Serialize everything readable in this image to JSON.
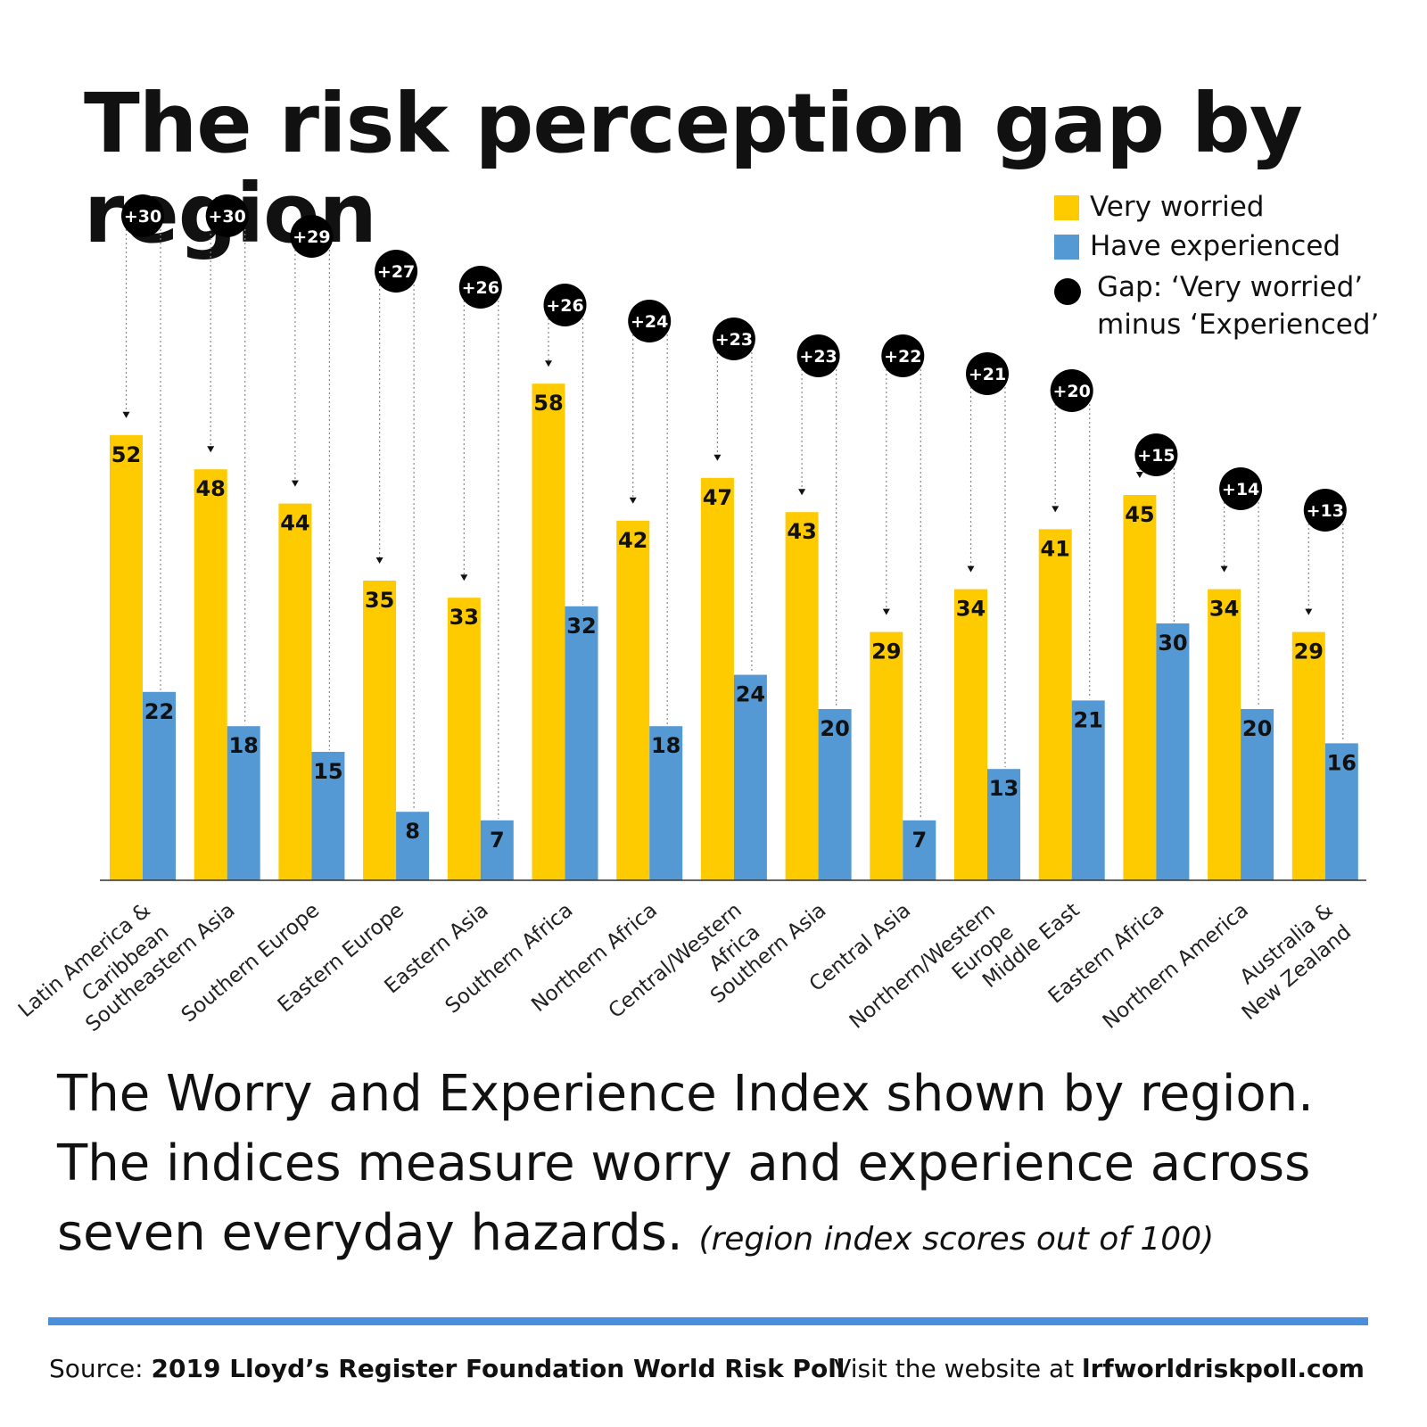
{
  "title": "The risk perception gap by region",
  "legend": {
    "very_worried": "Very worried",
    "have_experienced": "Have experienced",
    "gap_line1": "Gap: ‘Very worried’",
    "gap_line2": "minus ‘Experienced’"
  },
  "colors": {
    "worried": "#FECB00",
    "experienced": "#5499D4",
    "gap": "#000000"
  },
  "caption": {
    "line1": "The Worry and Experience Index shown by region.",
    "line2": "The indices measure worry and experience across",
    "line3": "seven everyday hazards.",
    "note": "(region index scores out of 100)"
  },
  "footer": {
    "source_label": "Source:",
    "source_name": "2019 Lloyd’s Register Foundation World Risk Poll",
    "visit_label": "Visit the website at",
    "website": "lrfworldriskpoll.com"
  },
  "chart_data": {
    "type": "bar",
    "title": "The risk perception gap by region",
    "ylim": [
      0,
      100
    ],
    "grid": false,
    "legend_position": "top-right",
    "categories": [
      [
        "Latin America &",
        "Caribbean"
      ],
      [
        "Southeastern Asia"
      ],
      [
        "Southern Europe"
      ],
      [
        "Eastern Europe"
      ],
      [
        "Eastern Asia"
      ],
      [
        "Southern Africa"
      ],
      [
        "Northern Africa"
      ],
      [
        "Central/Western",
        "Africa"
      ],
      [
        "Southern Asia"
      ],
      [
        "Central Asia"
      ],
      [
        "Northern/Western",
        "Europe"
      ],
      [
        "Middle East"
      ],
      [
        "Eastern Africa"
      ],
      [
        "Northern America"
      ],
      [
        "Australia &",
        "New Zealand"
      ]
    ],
    "series": [
      {
        "name": "Very worried",
        "values": [
          52,
          48,
          44,
          35,
          33,
          58,
          42,
          47,
          43,
          29,
          34,
          41,
          45,
          34,
          29
        ]
      },
      {
        "name": "Have experienced",
        "values": [
          22,
          18,
          15,
          8,
          7,
          32,
          18,
          24,
          20,
          7,
          13,
          21,
          30,
          20,
          16
        ]
      }
    ],
    "gaps": [
      "+30",
      "+30",
      "+29",
      "+27",
      "+26",
      "+26",
      "+24",
      "+23",
      "+23",
      "+22",
      "+21",
      "+20",
      "+15",
      "+14",
      "+13"
    ]
  }
}
